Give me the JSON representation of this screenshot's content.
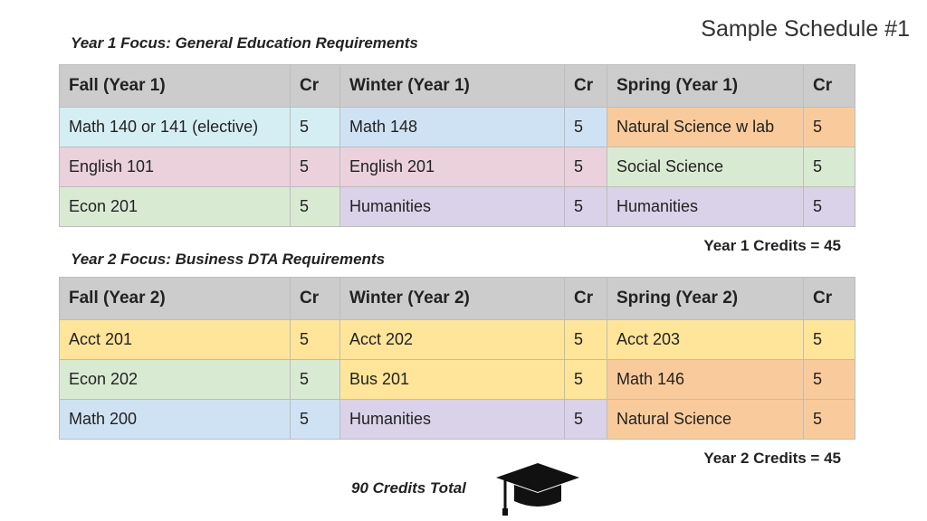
{
  "title": "Sample Schedule #1",
  "schedules": [
    {
      "focus": "Year 1 Focus:  General Education Requirements",
      "headers": [
        "Fall (Year 1)",
        "Cr",
        "Winter (Year 1)",
        "Cr",
        "Spring (Year 1)",
        "Cr"
      ],
      "rows": [
        [
          {
            "course": "Math 140 or 141 (elective)",
            "cr": 5,
            "color": "#d5eef3"
          },
          {
            "course": "Math 148",
            "cr": 5,
            "color": "#cfe2f3"
          },
          {
            "course": "Natural Science w lab",
            "cr": 5,
            "color": "#f9cb9c"
          }
        ],
        [
          {
            "course": "English 101",
            "cr": 5,
            "color": "#ead1dc"
          },
          {
            "course": "English 201",
            "cr": 5,
            "color": "#ead1dc"
          },
          {
            "course": "Social Science",
            "cr": 5,
            "color": "#d9ead3"
          }
        ],
        [
          {
            "course": "Econ 201",
            "cr": 5,
            "color": "#d9ead3"
          },
          {
            "course": "Humanities",
            "cr": 5,
            "color": "#d9d2e9"
          },
          {
            "course": "Humanities",
            "cr": 5,
            "color": "#d9d2e9"
          }
        ]
      ],
      "credits": "Year 1 Credits = 45"
    },
    {
      "focus": "Year 2 Focus:  Business DTA  Requirements",
      "headers": [
        "Fall (Year 2)",
        "Cr",
        "Winter (Year 2)",
        "Cr",
        "Spring (Year 2)",
        "Cr"
      ],
      "rows": [
        [
          {
            "course": "Acct 201",
            "cr": 5,
            "color": "#ffe599"
          },
          {
            "course": "Acct 202",
            "cr": 5,
            "color": "#ffe599"
          },
          {
            "course": "Acct 203",
            "cr": 5,
            "color": "#ffe599"
          }
        ],
        [
          {
            "course": "Econ 202",
            "cr": 5,
            "color": "#d9ead3"
          },
          {
            "course": "Bus 201",
            "cr": 5,
            "color": "#ffe599"
          },
          {
            "course": "Math 146",
            "cr": 5,
            "color": "#f9cb9c"
          }
        ],
        [
          {
            "course": "Math 200",
            "cr": 5,
            "color": "#cfe2f3"
          },
          {
            "course": "Humanities",
            "cr": 5,
            "color": "#d9d2e9"
          },
          {
            "course": "Natural Science",
            "cr": 5,
            "color": "#f9cb9c"
          }
        ]
      ],
      "credits": "Year 2 Credits = 45"
    }
  ],
  "total": "90 Credits Total"
}
